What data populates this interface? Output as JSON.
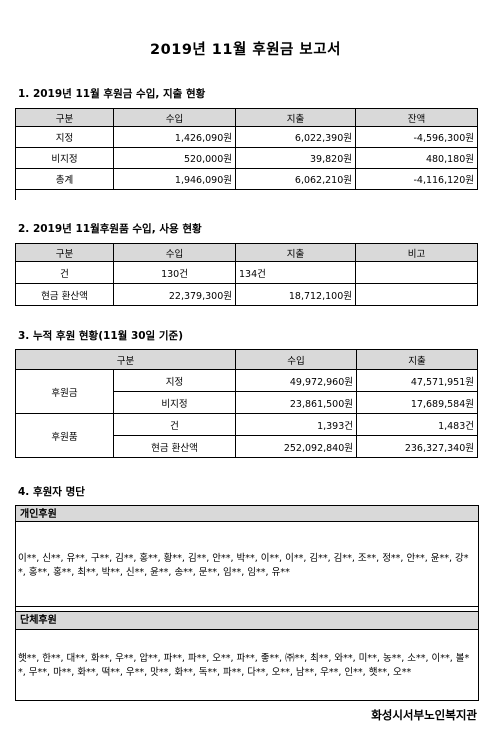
{
  "title": "2019년 11월 후원금 보고서",
  "section1": {
    "heading": "1. 2019년 11월 후원금 수입, 지출 현황",
    "headers": [
      "구분",
      "수입",
      "지출",
      "잔액"
    ],
    "rows": [
      [
        "지정",
        "1,426,090원",
        "6,022,390원",
        "-4,596,300원"
      ],
      [
        "비지정",
        "520,000원",
        "39,820원",
        "480,180원"
      ],
      [
        "총계",
        "1,946,090원",
        "6,062,210원",
        "-4,116,120원"
      ]
    ]
  },
  "section2": {
    "heading": "2. 2019년 11월후원품 수입, 사용 현황",
    "headers": [
      "구분",
      "수입",
      "지출",
      "비고"
    ],
    "rows": [
      [
        "건",
        "130건",
        "134건",
        ""
      ],
      [
        "현금 환산액",
        "22,379,300원",
        "18,712,100원",
        ""
      ]
    ]
  },
  "section3": {
    "heading": "3. 누적 후원 현황(11월 30일 기준)",
    "headers": [
      "구분",
      "수입",
      "지출"
    ],
    "groups": [
      {
        "label": "후원금",
        "rows": [
          [
            "지정",
            "49,972,960원",
            "47,571,951원"
          ],
          [
            "비지정",
            "23,861,500원",
            "17,689,584원"
          ]
        ]
      },
      {
        "label": "후원품",
        "rows": [
          [
            "건",
            "1,393건",
            "1,483건"
          ],
          [
            "현금 환산액",
            "252,092,840원",
            "236,327,340원"
          ]
        ]
      }
    ]
  },
  "section4": {
    "heading": "4. 후원자 명단",
    "individual": {
      "label": "개인후원",
      "names": "이**, 신**, 유**, 구**, 김**, 홍**, 황**, 김**, 안**, 박**, 이**, 이**, 김**, 김**, 조**, 정**, 안**, 윤**, 강**, 홍**, 홍**, 최**, 박**, 신**, 윤**, 송**, 문**, 임**, 임**, 유**"
    },
    "group": {
      "label": "단체후원",
      "names": "햇**, 한**, 대**, 화**, 우**, 압**, 파**, 파**, 오**, 파**, 좋**, ㈜**, 최**, 와**, 미**, 농**, 소**, 이**, 볼**, 무**, 마**, 화**, 떡**, 우**, 맛**, 화**, 독**, 파**, 다**, 오**, 남**, 우**, 인**, 햇**, 오**"
    }
  },
  "footer": "화성시서부노인복지관"
}
